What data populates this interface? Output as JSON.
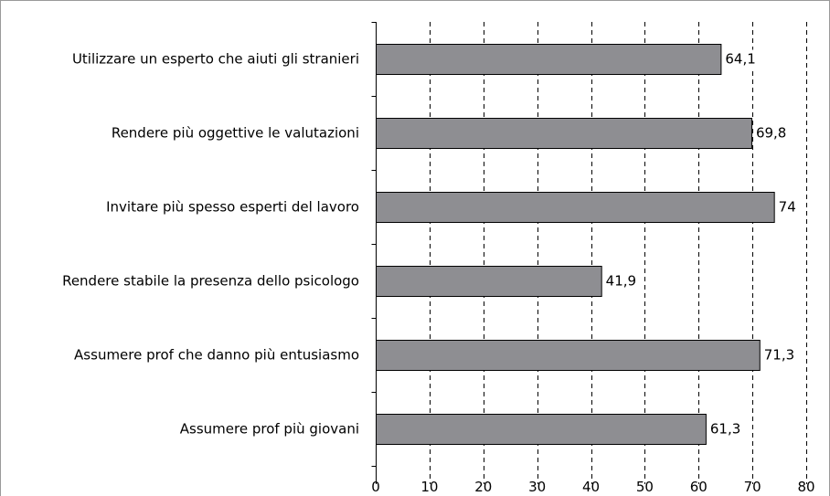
{
  "chart_data": {
    "type": "bar",
    "orientation": "horizontal",
    "categories": [
      "Utilizzare un esperto che aiuti gli stranieri",
      "Rendere più oggettive le valutazioni",
      "Invitare più spesso esperti del lavoro",
      "Rendere stabile la presenza dello psicologo",
      "Assumere prof che danno più entusiasmo",
      "Assumere prof più giovani"
    ],
    "values": [
      64.1,
      69.8,
      74,
      41.9,
      71.3,
      61.3
    ],
    "value_labels": [
      "64,1",
      "69,8",
      "74",
      "41,9",
      "71,3",
      "61,3"
    ],
    "xticks": [
      0,
      10,
      20,
      30,
      40,
      50,
      60,
      70,
      80
    ],
    "xlim": [
      0,
      80
    ],
    "grid": true,
    "colors": {
      "bar": "#8e8e92",
      "grid": "#000000"
    }
  }
}
